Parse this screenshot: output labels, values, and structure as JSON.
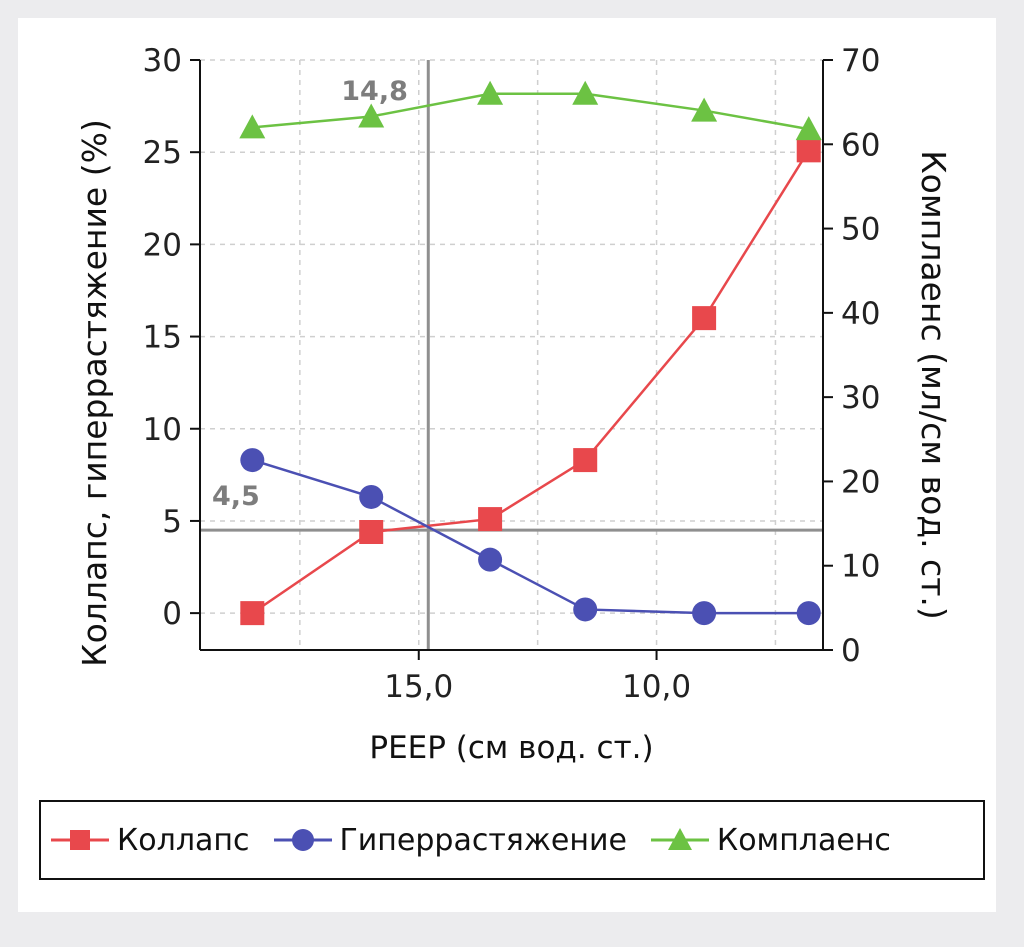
{
  "chart_data": {
    "type": "line",
    "xlabel": "PEEP (см вод. ст.)",
    "ylabel_left": "Коллапс, гиперрастяжение (%)",
    "ylabel_right": "Комплаенс (мл/см вод. ст.)",
    "x_reversed": true,
    "xlim": [
      19.6,
      6.5
    ],
    "x_ticks": [
      15,
      10
    ],
    "x_tick_labels": [
      "15,0",
      "10,0"
    ],
    "ylim_left": [
      -2,
      30
    ],
    "y_ticks_left": [
      0,
      5,
      10,
      15,
      20,
      25,
      30
    ],
    "ylim_right": [
      0,
      70
    ],
    "y_ticks_right": [
      0,
      10,
      20,
      30,
      40,
      50,
      60,
      70
    ],
    "grid": true,
    "x": [
      18.5,
      16.0,
      13.5,
      11.5,
      9.0,
      6.8
    ],
    "series": [
      {
        "name": "Коллапс",
        "axis": "left",
        "marker": "square",
        "color": "#e8484c",
        "values": [
          0,
          4.4,
          5.1,
          8.3,
          16.0,
          25.1
        ]
      },
      {
        "name": "Гиперрастяжение",
        "axis": "left",
        "marker": "circle",
        "color": "#4b50b3",
        "values": [
          8.3,
          6.3,
          2.9,
          0.2,
          0,
          0
        ]
      },
      {
        "name": "Комплаенс",
        "axis": "right",
        "marker": "triangle",
        "color": "#6cc243",
        "values": [
          62,
          63.3,
          66,
          66,
          64,
          61.8
        ]
      }
    ],
    "reference_lines": [
      {
        "axis": "x",
        "value": 14.8,
        "label": "14,8"
      },
      {
        "axis": "y_left",
        "value": 4.5,
        "label": "4,5"
      }
    ],
    "legend": {
      "position": "bottom"
    }
  }
}
